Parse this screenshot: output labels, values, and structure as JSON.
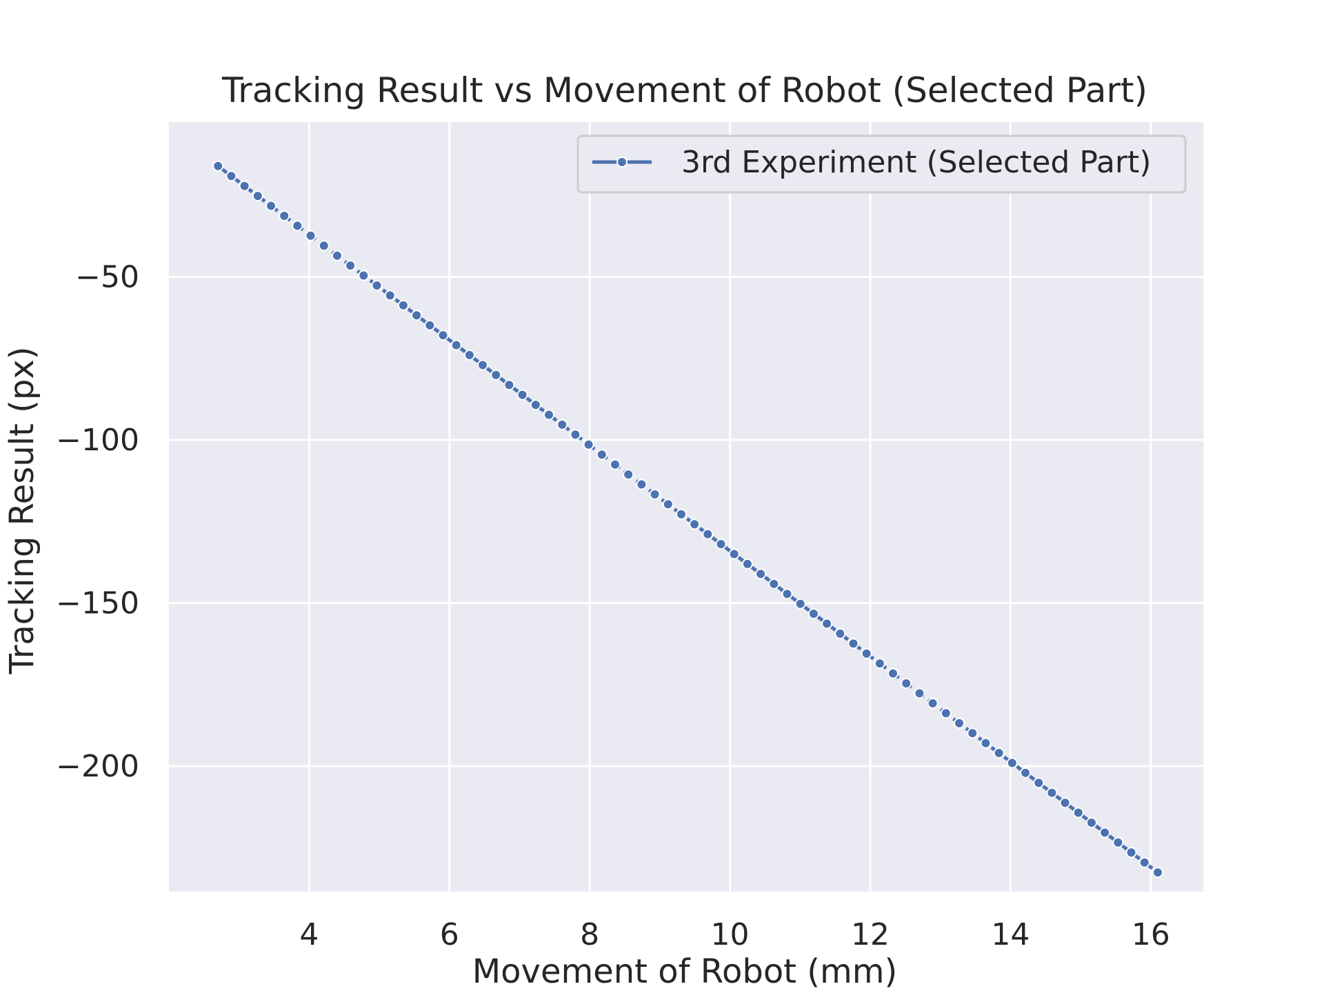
{
  "colors": {
    "plot_background": "#eaeaf2",
    "grid": "#ffffff",
    "series": "#4c72b0",
    "marker_edge": "#ffffff",
    "text": "#262626"
  },
  "chart_data": {
    "type": "line",
    "title": "Tracking Result vs Movement of Robot (Selected Part)",
    "xlabel": "Movement of Robot (mm)",
    "ylabel": "Tracking Result (px)",
    "xlim": [
      2.0,
      16.75
    ],
    "ylim": [
      -238.5,
      -2.5
    ],
    "xticks": [
      4,
      6,
      8,
      10,
      12,
      14,
      16
    ],
    "yticks": [
      -50,
      -100,
      -150,
      -200
    ],
    "xtick_labels": [
      "4",
      "6",
      "8",
      "10",
      "12",
      "14",
      "16"
    ],
    "ytick_labels": [
      "−50",
      "−100",
      "−150",
      "−200"
    ],
    "grid": true,
    "legend_position": "top-right",
    "marker": "circle",
    "line_style": "dashed",
    "series": [
      {
        "name": "3rd Experiment (Selected Part)",
        "x_start": 2.7,
        "x_end": 16.1,
        "y_start": -16.0,
        "y_end": -232.6,
        "points": 72
      }
    ]
  }
}
